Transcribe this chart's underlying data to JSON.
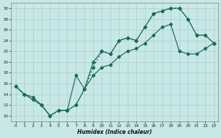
{
  "title": "",
  "xlabel": "Humidex (Indice chaleur)",
  "background_color": "#c8e8e8",
  "grid_color": "#a8cccc",
  "line_color": "#1a6b5a",
  "xlim": [
    -0.5,
    23.5
  ],
  "ylim": [
    9,
    31
  ],
  "xticks": [
    0,
    1,
    2,
    3,
    4,
    5,
    6,
    7,
    8,
    9,
    10,
    11,
    12,
    13,
    14,
    15,
    16,
    17,
    18,
    19,
    20,
    21,
    22,
    23
  ],
  "yticks": [
    10,
    12,
    14,
    16,
    18,
    20,
    22,
    24,
    26,
    28,
    30
  ],
  "s1_x": [
    0,
    1,
    2,
    3,
    4,
    5,
    6,
    7,
    8,
    9,
    10,
    11,
    12,
    13,
    14,
    15,
    16,
    17,
    18,
    19,
    20,
    21,
    22,
    23
  ],
  "s1_y": [
    15.5,
    14.0,
    13.5,
    12.0,
    10.0,
    11.0,
    11.0,
    17.5,
    15.0,
    20.0,
    22.0,
    21.5,
    24.0,
    24.5,
    24.0,
    26.5,
    29.0,
    29.5,
    30.0,
    30.0,
    28.0,
    25.0,
    25.0,
    23.5
  ],
  "s2_x": [
    0,
    1,
    2,
    3,
    4,
    5,
    6,
    7,
    8,
    9,
    10,
    11,
    12,
    13,
    14,
    15,
    16,
    17,
    18,
    19,
    20,
    21,
    22,
    23
  ],
  "s2_y": [
    15.5,
    14.0,
    13.0,
    12.0,
    10.0,
    11.0,
    11.0,
    12.0,
    15.0,
    19.0,
    22.0,
    21.5,
    24.0,
    24.5,
    24.0,
    26.5,
    29.0,
    29.5,
    30.0,
    30.0,
    28.0,
    25.0,
    25.0,
    23.5
  ],
  "s3_x": [
    0,
    1,
    2,
    3,
    4,
    5,
    6,
    7,
    8,
    9,
    10,
    11,
    12,
    13,
    14,
    15,
    16,
    17,
    18,
    19,
    20,
    21,
    22,
    23
  ],
  "s3_y": [
    15.5,
    14.0,
    13.0,
    12.0,
    10.0,
    11.0,
    11.0,
    12.0,
    15.0,
    17.5,
    19.0,
    19.5,
    21.0,
    22.0,
    22.5,
    23.5,
    25.0,
    26.5,
    27.0,
    22.0,
    21.5,
    21.5,
    22.5,
    23.5
  ]
}
